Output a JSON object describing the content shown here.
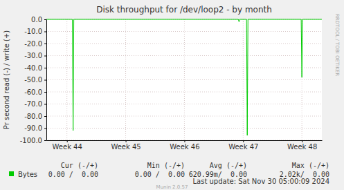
{
  "chart_data": {
    "type": "line",
    "title": "Disk throughput for /dev/loop2 - by month",
    "y_label": "Pr second read (-) / write (+)",
    "x": [
      43.65,
      44.093,
      44.105,
      44.117,
      46.918,
      46.93,
      46.942,
      47.058,
      47.07,
      47.082,
      47.988,
      48.0,
      48.012,
      48.34
    ],
    "series": [
      {
        "name": "Bytes",
        "color": "#00cc00",
        "values": [
          0,
          0,
          -92,
          0,
          0,
          -2,
          0,
          0,
          -96,
          0,
          0,
          -48,
          0,
          0
        ],
        "stats": [
          "0.00 /  0.00",
          "0.00 /  0.00",
          "620.99m/  0.00",
          "2.02k/  0.00"
        ]
      }
    ],
    "stats_headers": [
      "Cur (-/+)",
      "Min (-/+)",
      "Avg (-/+)",
      "Max (-/+)"
    ],
    "xlim": [
      43.65,
      48.34
    ],
    "xticks": [
      {
        "value": 44,
        "label": "Week 44"
      },
      {
        "value": 45,
        "label": "Week 45"
      },
      {
        "value": 46,
        "label": "Week 46"
      },
      {
        "value": 47,
        "label": "Week 47"
      },
      {
        "value": 48,
        "label": "Week 48"
      }
    ],
    "ylim": [
      -100,
      0
    ],
    "yticks": [
      {
        "value": 0,
        "label": "0.0"
      },
      {
        "value": -10,
        "label": "-10.0"
      },
      {
        "value": -20,
        "label": "-20.0"
      },
      {
        "value": -30,
        "label": "-30.0"
      },
      {
        "value": -40,
        "label": "-40.0"
      },
      {
        "value": -50,
        "label": "-50.0"
      },
      {
        "value": -60,
        "label": "-60.0"
      },
      {
        "value": -70,
        "label": "-70.0"
      },
      {
        "value": -80,
        "label": "-80.0"
      },
      {
        "value": -90,
        "label": "-90.0"
      },
      {
        "value": -100,
        "label": "-100.0"
      }
    ],
    "grid": true,
    "footer": "Last update: Sat Nov 30 05:00:09 2024",
    "credits": "Munin 2.0.57",
    "watermark": "RRDTOOL / TOBI OETIKER"
  }
}
